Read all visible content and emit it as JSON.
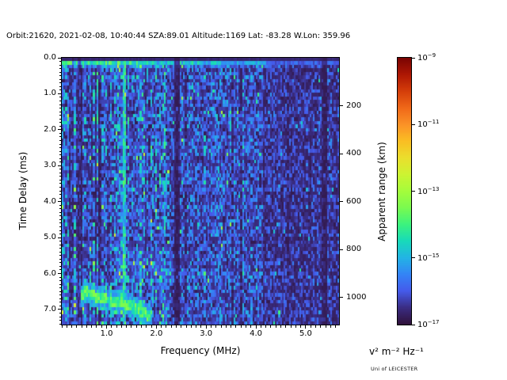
{
  "branding": {
    "credit": "Uni of LEICESTER"
  },
  "chart_data": {
    "type": "heatmap",
    "title": "Orbit:21620, 2021-02-08, 10:40:44 SZA:89.01 Altitude:1169 Lat: -83.28 W.Lon: 359.96",
    "xlabel": "Frequency (MHz)",
    "ylabel": "Time Delay (ms)",
    "y2label": "Apparent range (km)",
    "xlim": [
      0.1,
      5.67
    ],
    "ylim": [
      0,
      7.42
    ],
    "y_axis_inverted": true,
    "xticks": {
      "values": [
        1,
        2,
        3,
        4,
        5
      ],
      "labels": [
        "1.0",
        "2.0",
        "3.0",
        "4.0",
        "5.0"
      ],
      "minor_step": 0.1
    },
    "yticks": {
      "values": [
        0,
        1,
        2,
        3,
        4,
        5,
        6,
        7
      ],
      "labels": [
        "0.0",
        "1.0",
        "2.0",
        "3.0",
        "4.0",
        "5.0",
        "6.0",
        "7.0"
      ],
      "minor_step": 0.1
    },
    "y2ticks": {
      "values": [
        200,
        400,
        600,
        800,
        1000
      ],
      "labels": [
        "200",
        "400",
        "600",
        "800",
        "1000"
      ],
      "km_per_ms": 150
    },
    "colorbar": {
      "label": "v² m⁻² Hz⁻¹",
      "scale": "log",
      "tick_exponents": [
        -9,
        -11,
        -13,
        -15,
        -17
      ],
      "range_exponents": [
        -17,
        -9
      ],
      "colormap": "turbo",
      "stops": [
        [
          0.0,
          "#30123b"
        ],
        [
          0.0625,
          "#3a2d83"
        ],
        [
          0.125,
          "#455beb"
        ],
        [
          0.1875,
          "#3485f6"
        ],
        [
          0.25,
          "#23b4e5"
        ],
        [
          0.3125,
          "#18daba"
        ],
        [
          0.375,
          "#3cf37e"
        ],
        [
          0.4375,
          "#7afa50"
        ],
        [
          0.5,
          "#a4fc3c"
        ],
        [
          0.5625,
          "#cdf432"
        ],
        [
          0.625,
          "#ebdf2d"
        ],
        [
          0.6875,
          "#fabe23"
        ],
        [
          0.75,
          "#fb9327"
        ],
        [
          0.8125,
          "#f06919"
        ],
        [
          0.875,
          "#d53e0a"
        ],
        [
          0.9375,
          "#af1804"
        ],
        [
          1.0,
          "#7a0403"
        ]
      ]
    },
    "grid": {
      "cols": 160,
      "rows": 76,
      "seed": 13
    },
    "noise": {
      "bands": [
        {
          "f_max": 0.95,
          "level": 0.16
        },
        {
          "f_max": 2.3,
          "level": 0.175
        },
        {
          "f_max": 4.15,
          "level": 0.145
        },
        {
          "f_max": 9.0,
          "level": 0.095
        }
      ],
      "stripe_zone_f_max": 0.95,
      "stripe_dark_prob": 0.38,
      "dark_cell_prob": 0.1,
      "bright_cell_prob": 0.045,
      "top_rows_boost": {
        "t_max_ms": 0.5,
        "f_max": 4.2,
        "mult": 1.12
      },
      "bottom_left_boost": {
        "f_max": 2.3,
        "t_min_ms": 5.6,
        "mult": 1.15
      }
    },
    "features": {
      "top_dark_row": {
        "t_max_ms": 0.105,
        "v": 0.035
      },
      "surface_band": {
        "t_range_ms": [
          0.105,
          0.21
        ],
        "levels": [
          {
            "f_max": 1.7,
            "v": 0.31
          },
          {
            "f_max": 3.3,
            "v": 0.25
          },
          {
            "f_max": 4.2,
            "v": 0.2
          },
          {
            "f_max": 9.0,
            "v": 0.12
          }
        ],
        "afterglow_mult": 0.55,
        "afterglow_t_max_ms": 0.32
      },
      "plasma_line": {
        "f_mhz": 1.36,
        "half_width_mhz": 0.035,
        "v": 0.24
      },
      "dark_bands": [
        {
          "f_range_mhz": [
            2.37,
            2.48
          ],
          "mult": 0.3
        },
        {
          "f_range_mhz": [
            0.295,
            0.35
          ],
          "mult": 0.38
        },
        {
          "f_range_mhz": [
            0.41,
            0.47
          ],
          "mult": 0.38
        },
        {
          "f_range_mhz": [
            5.33,
            5.42
          ],
          "mult": 0.55
        }
      ],
      "echo_trace": {
        "f_range_mhz": [
          0.5,
          1.88
        ],
        "half_width_ms": 0.14,
        "v": 0.3,
        "points": [
          [
            0.5,
            6.62
          ],
          [
            0.58,
            6.5
          ],
          [
            0.68,
            6.58
          ],
          [
            0.8,
            6.66
          ],
          [
            0.95,
            6.72
          ],
          [
            1.1,
            6.76
          ],
          [
            1.3,
            6.8
          ],
          [
            1.45,
            6.86
          ],
          [
            1.6,
            6.96
          ],
          [
            1.75,
            7.08
          ],
          [
            1.88,
            7.2
          ]
        ]
      }
    }
  }
}
